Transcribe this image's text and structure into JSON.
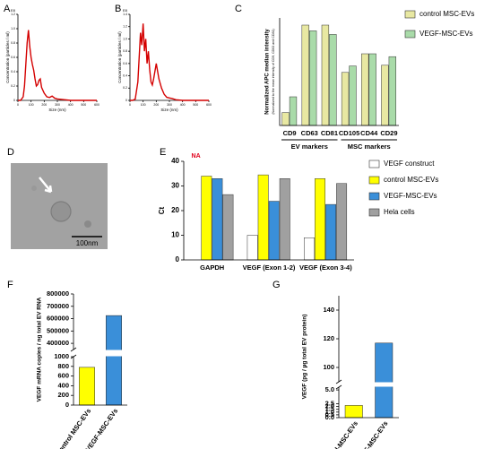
{
  "chart_data": [
    {
      "type": "line",
      "panel": "A",
      "xlabel": "Size (nm)",
      "ylabel": "Concentration (particles / ml)",
      "y_unit": "E8",
      "x": [
        0,
        20,
        40,
        50,
        60,
        70,
        80,
        90,
        100,
        110,
        120,
        130,
        140,
        150,
        160,
        170,
        180,
        200,
        220,
        240,
        260,
        280,
        300,
        350,
        400,
        500,
        600
      ],
      "series": [
        {
          "color": "#d40000",
          "values": [
            0,
            0,
            0.05,
            0.2,
            0.5,
            0.8,
            0.98,
            0.75,
            0.6,
            0.5,
            0.42,
            0.3,
            0.2,
            0.22,
            0.28,
            0.3,
            0.18,
            0.1,
            0.05,
            0.04,
            0.06,
            0.03,
            0.02,
            0.01,
            0,
            0,
            0
          ]
        }
      ],
      "xlim": [
        0,
        600
      ],
      "xticks": [
        0,
        100,
        200,
        300,
        400,
        500,
        600
      ],
      "ylim": [
        0,
        1.2
      ],
      "yticks": [
        0,
        0.2,
        0.4,
        0.6,
        0.8,
        {
          "value": 1,
          "label": "1.0"
        },
        1.2
      ]
    },
    {
      "type": "line",
      "panel": "B",
      "xlabel": "Size (nm)",
      "ylabel": "Concentration (particles / ml)",
      "y_unit": "E8",
      "x": [
        0,
        20,
        40,
        60,
        70,
        80,
        90,
        100,
        110,
        120,
        130,
        140,
        150,
        160,
        170,
        180,
        200,
        220,
        240,
        260,
        280,
        300,
        320,
        350,
        400,
        500,
        600
      ],
      "series": [
        {
          "color": "#d40000",
          "values": [
            0,
            0,
            0.02,
            0.3,
            0.7,
            1.1,
            0.9,
            1.25,
            0.8,
            1.0,
            0.6,
            0.8,
            0.5,
            0.3,
            0.25,
            0.35,
            0.6,
            0.35,
            0.2,
            0.1,
            0.05,
            0.04,
            0.03,
            0.01,
            0,
            0,
            0
          ]
        }
      ],
      "xlim": [
        0,
        600
      ],
      "xticks": [
        0,
        100,
        200,
        300,
        400,
        500,
        600
      ],
      "ylim": [
        0,
        1.4
      ],
      "yticks": [
        0,
        0.2,
        0.4,
        0.6,
        0.8,
        {
          "value": 1,
          "label": "1.0"
        },
        1.2,
        1.4
      ]
    },
    {
      "type": "bar",
      "panel": "C",
      "ylabel": "Normalized APC median intensity",
      "ysubtitle": "(Normalized to the mean intensity of CD9, CD63 and CD81)",
      "categories": [
        "CD9",
        "CD63",
        "CD81",
        "CD105",
        "CD44",
        "CD29"
      ],
      "series": [
        {
          "name": "control MSC-EVs",
          "color": "#e8e8a2",
          "values": [
            0.18,
            1.4,
            1.4,
            0.74,
            1.0,
            0.84
          ]
        },
        {
          "name": "VEGF-MSC-EVs",
          "color": "#a9dba9",
          "values": [
            0.4,
            1.32,
            1.27,
            0.83,
            1.0,
            0.96
          ]
        }
      ],
      "groups": [
        {
          "label": "EV markers",
          "from": 0,
          "to": 2
        },
        {
          "label": "MSC markers",
          "from": 3,
          "to": 5
        }
      ],
      "ylim": [
        0,
        1.5
      ],
      "yticks": []
    },
    {
      "type": "bar",
      "panel": "E",
      "ylabel": "Ct",
      "annotation": "NA",
      "categories": [
        "GAPDH",
        "VEGF (Exon 1-2)",
        "VEGF (Exon 3-4)"
      ],
      "series": [
        {
          "name": "VEGF construct",
          "color": "#ffffff",
          "values": [
            null,
            10,
            9
          ]
        },
        {
          "name": "control MSC-EVs",
          "color": "#ffff00",
          "values": [
            34,
            34.5,
            33
          ]
        },
        {
          "name": "VEGF-MSC-EVs",
          "color": "#3a8fd9",
          "values": [
            33,
            23.8,
            22.5
          ]
        },
        {
          "name": "Hela cells",
          "color": "#a0a0a0",
          "values": [
            26.5,
            33,
            31
          ]
        }
      ],
      "ylim": [
        0,
        40
      ],
      "yticks": [
        0,
        10,
        20,
        30,
        40
      ]
    },
    {
      "type": "broken_bar",
      "panel": "F",
      "ylabel": "VEGF mRNA copies / ng total EV RNA",
      "categories": [
        "control MSC-EVs",
        "VEGF-MSC-EVs"
      ],
      "colors": [
        "#ffff00",
        "#3a8fd9"
      ],
      "values": [
        780,
        625000
      ],
      "y_segments": [
        {
          "ylim": [
            0,
            1000
          ],
          "yticks": [
            0,
            200,
            400,
            600,
            800,
            1000
          ]
        },
        {
          "ylim": [
            350000,
            800000
          ],
          "yticks": [
            400000,
            500000,
            600000,
            700000,
            800000
          ]
        }
      ]
    },
    {
      "type": "broken_bar",
      "panel": "G",
      "ylabel": "VEGF (pg / µg total EV protein)",
      "categories": [
        "Control-MSC-EVs",
        "VEGF-MSC-EVs"
      ],
      "colors": [
        "#ffff00",
        "#3a8fd9"
      ],
      "values": [
        2.2,
        117
      ],
      "y_segments": [
        {
          "ylim": [
            0,
            5.5
          ],
          "yticks": [
            {
              "value": 0,
              "label": "0.0"
            },
            {
              "value": 0.5,
              "label": "0.5"
            },
            {
              "value": 1,
              "label": "1.0"
            },
            {
              "value": 1.5,
              "label": "1.5"
            },
            {
              "value": 2,
              "label": "2.0"
            },
            {
              "value": 2.5,
              "label": "2.5"
            },
            {
              "value": 5,
              "label": "5.0"
            }
          ]
        },
        {
          "ylim": [
            90,
            150
          ],
          "yticks": [
            100,
            120,
            140
          ]
        }
      ]
    }
  ],
  "figure_d": {
    "panel": "D",
    "scale_bar": "100nm"
  }
}
